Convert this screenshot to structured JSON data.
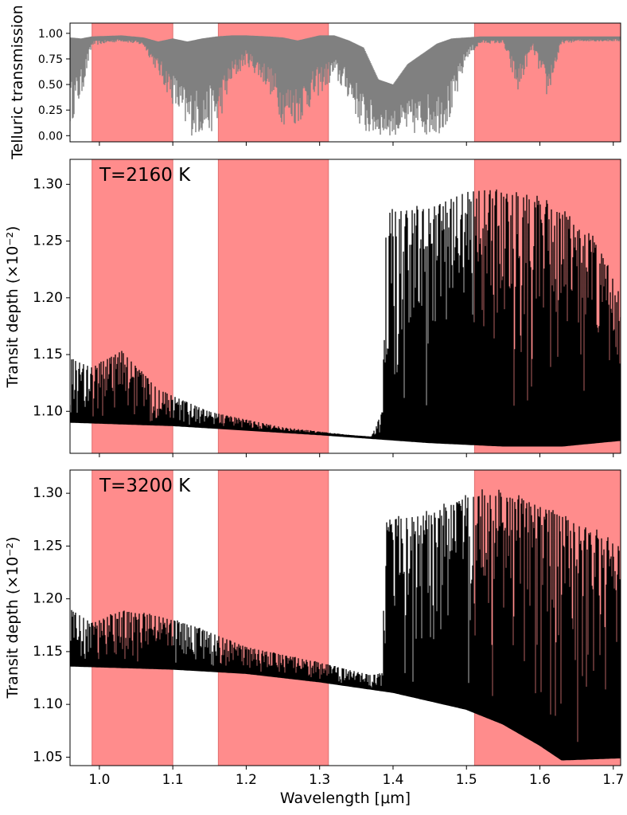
{
  "x_axis": {
    "label": "Wavelength [μm]",
    "range": [
      0.96,
      1.71
    ],
    "ticks": [
      "1.0",
      "1.1",
      "1.2",
      "1.3",
      "1.4",
      "1.5",
      "1.6",
      "1.7"
    ]
  },
  "shaded_bands_um": [
    [
      0.99,
      1.1
    ],
    [
      1.162,
      1.312
    ],
    [
      1.511,
      1.71
    ]
  ],
  "colors": {
    "band": "#ff8c8c",
    "telluric": "#808080",
    "spectrum": "#000000"
  },
  "chart_data": [
    {
      "type": "area",
      "ylabel": "Telluric transmission",
      "ylim": [
        -0.06,
        1.1
      ],
      "yticks": [
        "0.00",
        "0.25",
        "0.50",
        "0.75",
        "1.00"
      ],
      "x": [
        0.96,
        0.975,
        0.99,
        1.03,
        1.06,
        1.08,
        1.1,
        1.12,
        1.14,
        1.16,
        1.18,
        1.2,
        1.23,
        1.25,
        1.27,
        1.3,
        1.32,
        1.34,
        1.36,
        1.38,
        1.4,
        1.42,
        1.44,
        1.46,
        1.48,
        1.5,
        1.52,
        1.55,
        1.57,
        1.59,
        1.61,
        1.63,
        1.66,
        1.71
      ],
      "upper": [
        0.96,
        0.95,
        0.97,
        0.98,
        0.96,
        0.92,
        0.95,
        0.92,
        0.95,
        0.97,
        0.98,
        0.98,
        0.97,
        0.96,
        0.93,
        0.98,
        0.98,
        0.93,
        0.86,
        0.55,
        0.5,
        0.7,
        0.8,
        0.9,
        0.95,
        0.96,
        0.97,
        0.97,
        0.97,
        0.97,
        0.97,
        0.97,
        0.97,
        0.97
      ],
      "lower": [
        0.1,
        0.35,
        0.88,
        0.92,
        0.88,
        0.6,
        0.3,
        0.0,
        0.0,
        0.05,
        0.5,
        0.7,
        0.45,
        0.1,
        0.1,
        0.4,
        0.55,
        0.35,
        0.0,
        0.0,
        0.0,
        0.0,
        0.0,
        0.0,
        0.15,
        0.75,
        0.9,
        0.9,
        0.4,
        0.85,
        0.35,
        0.9,
        0.92,
        0.92
      ]
    },
    {
      "type": "line",
      "annotation": "T=2160 K",
      "ylabel": "Transit depth (×10⁻²)",
      "ylim": [
        1.063,
        1.322
      ],
      "yticks": [
        "1.10",
        "1.15",
        "1.20",
        "1.25",
        "1.30"
      ],
      "continuum": {
        "x": [
          0.96,
          1.1,
          1.3,
          1.45,
          1.55,
          1.63,
          1.71
        ],
        "y": [
          1.091,
          1.088,
          1.08,
          1.073,
          1.07,
          1.07,
          1.075
        ]
      },
      "peak_envelope": {
        "x": [
          0.96,
          0.99,
          1.03,
          1.08,
          1.15,
          1.25,
          1.33,
          1.37,
          1.385,
          1.39,
          1.4,
          1.45,
          1.5,
          1.53,
          1.58,
          1.63,
          1.68,
          1.71
        ],
        "y": [
          1.148,
          1.14,
          1.155,
          1.12,
          1.1,
          1.086,
          1.08,
          1.077,
          1.1,
          1.28,
          1.282,
          1.285,
          1.3,
          1.302,
          1.295,
          1.28,
          1.25,
          1.205
        ]
      }
    },
    {
      "type": "line",
      "annotation": "T=3200 K",
      "ylabel": "Transit depth (×10⁻²)",
      "ylim": [
        1.042,
        1.322
      ],
      "yticks": [
        "1.05",
        "1.10",
        "1.15",
        "1.20",
        "1.25",
        "1.30"
      ],
      "continuum": {
        "x": [
          0.96,
          1.1,
          1.2,
          1.3,
          1.4,
          1.5,
          1.55,
          1.6,
          1.63,
          1.71
        ],
        "y": [
          1.137,
          1.134,
          1.13,
          1.122,
          1.112,
          1.096,
          1.082,
          1.062,
          1.048,
          1.05
        ]
      },
      "peak_envelope": {
        "x": [
          0.96,
          0.99,
          1.03,
          1.08,
          1.13,
          1.2,
          1.3,
          1.37,
          1.385,
          1.39,
          1.4,
          1.45,
          1.5,
          1.53,
          1.58,
          1.63,
          1.68,
          1.71
        ],
        "y": [
          1.192,
          1.178,
          1.19,
          1.185,
          1.175,
          1.155,
          1.14,
          1.128,
          1.13,
          1.28,
          1.28,
          1.285,
          1.302,
          1.305,
          1.3,
          1.285,
          1.265,
          1.255
        ]
      }
    }
  ]
}
